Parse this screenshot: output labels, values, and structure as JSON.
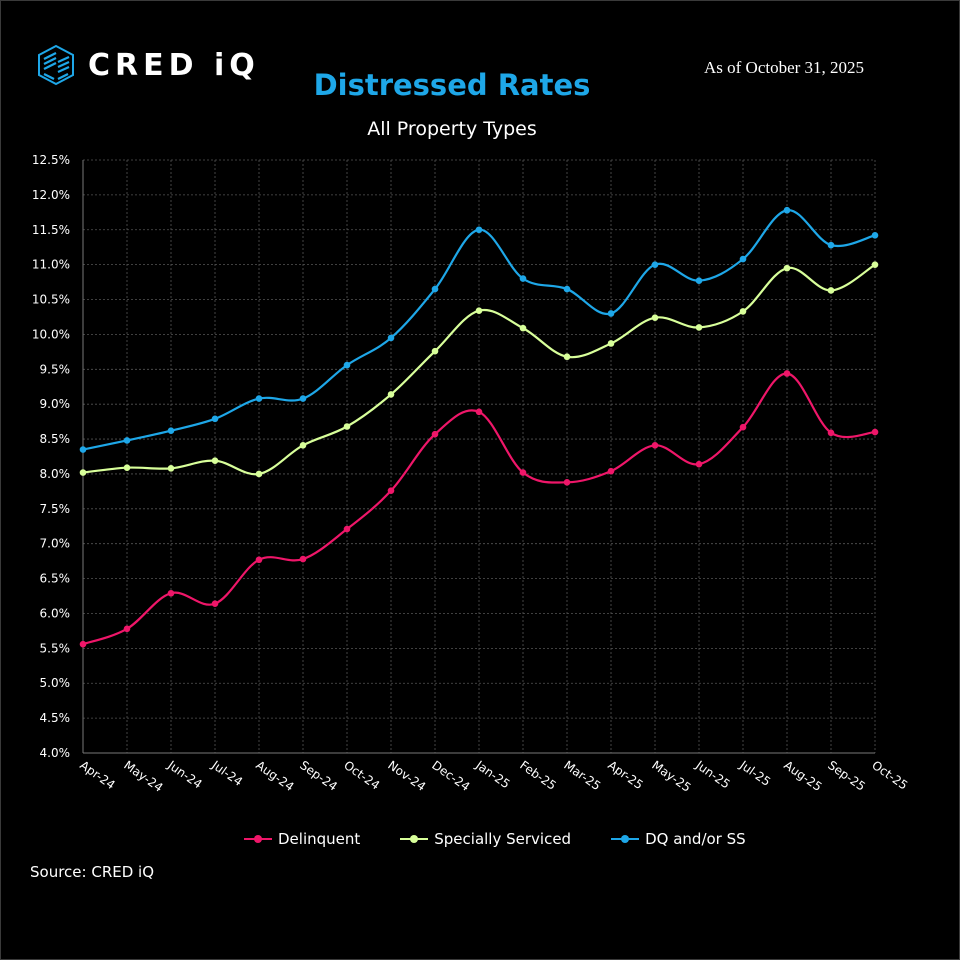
{
  "brand": {
    "name": "CRED iQ"
  },
  "as_of": "As of October 31, 2025",
  "source": "Source: CRED iQ",
  "colors": {
    "title": "#1ea7e8",
    "delinquent": "#ef1669",
    "specially_serviced": "#d8ff9a",
    "dq_ss": "#1ea7e8"
  },
  "chart_data": {
    "type": "line",
    "title": "Distressed Rates",
    "subtitle": "All Property Types",
    "xlabel": "",
    "ylabel": "",
    "ylim": [
      4.0,
      12.5
    ],
    "yticks": [
      4.0,
      4.5,
      5.0,
      5.5,
      6.0,
      6.5,
      7.0,
      7.5,
      8.0,
      8.5,
      9.0,
      9.5,
      10.0,
      10.5,
      11.0,
      11.5,
      12.0,
      12.5
    ],
    "ytick_labels": [
      "4.0%",
      "4.5%",
      "5.0%",
      "5.5%",
      "6.0%",
      "6.5%",
      "7.0%",
      "7.5%",
      "8.0%",
      "8.5%",
      "9.0%",
      "9.5%",
      "10.0%",
      "10.5%",
      "11.0%",
      "11.5%",
      "12.0%",
      "12.5%"
    ],
    "grid": true,
    "legend_position": "bottom",
    "categories": [
      "Apr-24",
      "May-24",
      "Jun-24",
      "Jul-24",
      "Aug-24",
      "Sep-24",
      "Oct-24",
      "Nov-24",
      "Dec-24",
      "Jan-25",
      "Feb-25",
      "Mar-25",
      "Apr-25",
      "May-25",
      "Jun-25",
      "Jul-25",
      "Aug-25",
      "Sep-25",
      "Oct-25"
    ],
    "series": [
      {
        "name": "Delinquent",
        "color": "#ef1669",
        "values": [
          5.56,
          5.78,
          6.29,
          6.14,
          6.77,
          6.78,
          7.21,
          7.76,
          8.57,
          8.89,
          8.02,
          7.88,
          8.04,
          8.41,
          8.14,
          8.67,
          9.44,
          8.59,
          8.6
        ]
      },
      {
        "name": "Specially Serviced",
        "color": "#d8ff9a",
        "values": [
          8.02,
          8.09,
          8.08,
          8.19,
          8.0,
          8.41,
          8.68,
          9.14,
          9.76,
          10.34,
          10.09,
          9.68,
          9.87,
          10.24,
          10.1,
          10.33,
          10.95,
          10.63,
          11.0
        ]
      },
      {
        "name": "DQ and/or SS",
        "color": "#1ea7e8",
        "values": [
          8.35,
          8.48,
          8.62,
          8.79,
          9.08,
          9.08,
          9.56,
          9.95,
          10.65,
          11.5,
          10.8,
          10.65,
          10.3,
          11.0,
          10.77,
          11.08,
          11.78,
          11.28,
          11.42
        ]
      }
    ]
  }
}
